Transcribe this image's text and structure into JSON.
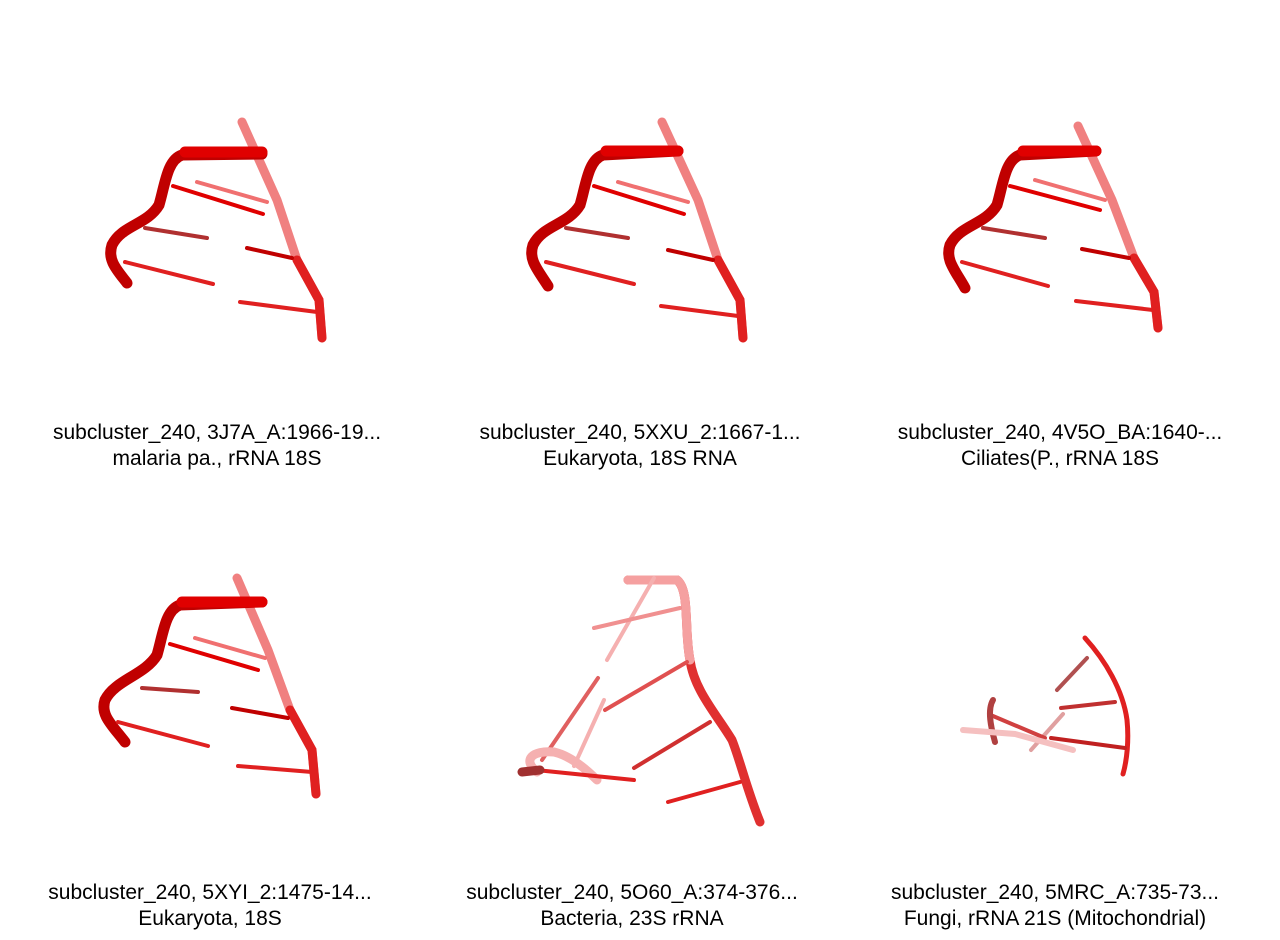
{
  "accent_colors": {
    "strand_dark": "#8b0000",
    "strand_mid": "#e00000",
    "strand_light": "#f08080"
  },
  "panels": [
    {
      "line1": "subcluster_240, 3J7A_A:1966-19...",
      "line2": "malaria pa., rRNA 18S",
      "structure_icon": "rna-hairpin-icon"
    },
    {
      "line1": "subcluster_240, 5XXU_2:1667-1...",
      "line2": "Eukaryota, 18S RNA",
      "structure_icon": "rna-hairpin-icon"
    },
    {
      "line1": "subcluster_240, 4V5O_BA:1640-...",
      "line2": "Ciliates(P., rRNA 18S",
      "structure_icon": "rna-hairpin-icon"
    },
    {
      "line1": "subcluster_240, 5XYI_2:1475-14...",
      "line2": "Eukaryota, 18S",
      "structure_icon": "rna-hairpin-icon"
    },
    {
      "line1": "subcluster_240, 5O60_A:374-376...",
      "line2": "Bacteria, 23S rRNA",
      "structure_icon": "rna-loop-icon"
    },
    {
      "line1": "subcluster_240, 5MRC_A:735-73...",
      "line2": "Fungi, rRNA 21S (Mitochondrial)",
      "structure_icon": "rna-fragment-icon"
    }
  ]
}
